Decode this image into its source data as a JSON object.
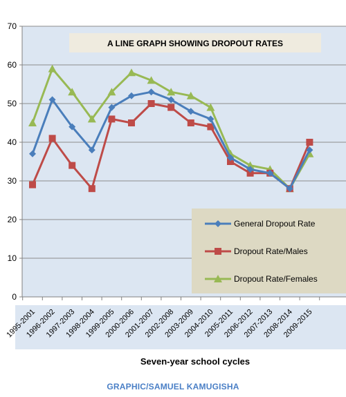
{
  "credit": "GRAPHIC/SAMUEL KAMUGISHA",
  "chart_data": {
    "type": "line",
    "title": "A LINE GRAPH SHOWING DROPOUT RATES",
    "xlabel": "Seven-year school cycles",
    "ylabel": "",
    "ylim": [
      0,
      70
    ],
    "yticks": [
      0,
      10,
      20,
      30,
      40,
      50,
      60,
      70
    ],
    "grid": true,
    "legend_position": "bottom-right",
    "categories": [
      "1995-2001",
      "1996-2002",
      "1997-2003",
      "1998-2004",
      "1999-2005",
      "2000-2006",
      "2001-2007",
      "2002-2008",
      "2003-2009",
      "2004-2010",
      "2005-2011",
      "2006-2012",
      "2007-2013",
      "2008-2014",
      "2009-2015"
    ],
    "series": [
      {
        "name": "General Dropout Rate",
        "color": "#4a7ebb",
        "marker": "diamond",
        "values": [
          37,
          51,
          44,
          38,
          49,
          52,
          53,
          51,
          48,
          46,
          36,
          33,
          32,
          28,
          38
        ]
      },
      {
        "name": "Dropout Rate/Males",
        "color": "#be4b48",
        "marker": "square",
        "values": [
          29,
          41,
          34,
          28,
          46,
          45,
          50,
          49,
          45,
          44,
          35,
          32,
          32,
          28,
          40
        ]
      },
      {
        "name": "Dropout Rate/Females",
        "color": "#98b954",
        "marker": "triangle",
        "values": [
          45,
          59,
          53,
          46,
          53,
          58,
          56,
          53,
          52,
          49,
          37,
          34,
          33,
          28,
          37
        ]
      }
    ]
  }
}
